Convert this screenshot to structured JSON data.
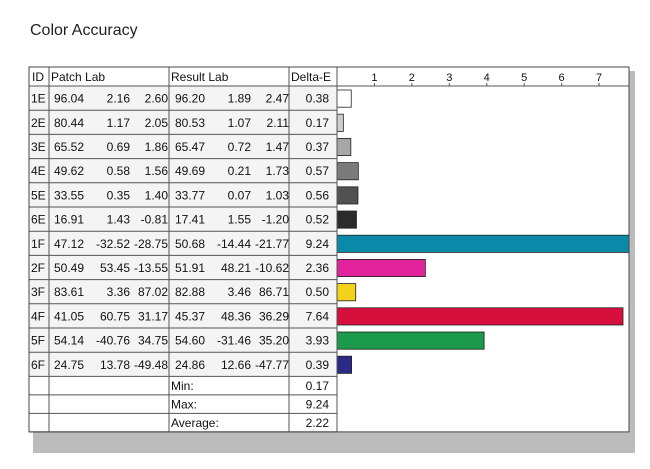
{
  "title": "Color Accuracy",
  "chart_data": {
    "type": "bar",
    "orientation": "horizontal",
    "title": "Color Accuracy",
    "columns": {
      "id": "ID",
      "patch": "Patch Lab",
      "result": "Result Lab",
      "delta": "Delta-E"
    },
    "x_ticks": [
      "1",
      "2",
      "3",
      "4",
      "5",
      "6",
      "7"
    ],
    "xlim": [
      0,
      7.8
    ],
    "rows": [
      {
        "id": "1E",
        "patch": [
          "96.04",
          "2.16",
          "2.60"
        ],
        "result": [
          "96.20",
          "1.89",
          "2.47"
        ],
        "delta": "0.38",
        "value": 0.38,
        "color": "#ffffff"
      },
      {
        "id": "2E",
        "patch": [
          "80.44",
          "1.17",
          "2.05"
        ],
        "result": [
          "80.53",
          "1.07",
          "2.11"
        ],
        "delta": "0.17",
        "value": 0.17,
        "color": "#cccccc"
      },
      {
        "id": "3E",
        "patch": [
          "65.52",
          "0.69",
          "1.86"
        ],
        "result": [
          "65.47",
          "0.72",
          "1.47"
        ],
        "delta": "0.37",
        "value": 0.37,
        "color": "#a6a6a6"
      },
      {
        "id": "4E",
        "patch": [
          "49.62",
          "0.58",
          "1.56"
        ],
        "result": [
          "49.69",
          "0.21",
          "1.73"
        ],
        "delta": "0.57",
        "value": 0.57,
        "color": "#7b7b7b"
      },
      {
        "id": "5E",
        "patch": [
          "33.55",
          "0.35",
          "1.40"
        ],
        "result": [
          "33.77",
          "0.07",
          "1.03"
        ],
        "delta": "0.56",
        "value": 0.56,
        "color": "#515151"
      },
      {
        "id": "6E",
        "patch": [
          "16.91",
          "1.43",
          "-0.81"
        ],
        "result": [
          "17.41",
          "1.55",
          "-1.20"
        ],
        "delta": "0.52",
        "value": 0.52,
        "color": "#2b2b2b"
      },
      {
        "id": "1F",
        "patch": [
          "47.12",
          "-32.52",
          "-28.75"
        ],
        "result": [
          "50.68",
          "-14.44",
          "-21.77"
        ],
        "delta": "9.24",
        "value": 9.24,
        "color": "#0a8aa8"
      },
      {
        "id": "2F",
        "patch": [
          "50.49",
          "53.45",
          "-13.55"
        ],
        "result": [
          "51.91",
          "48.21",
          "-10.62"
        ],
        "delta": "2.36",
        "value": 2.36,
        "color": "#e0239a"
      },
      {
        "id": "3F",
        "patch": [
          "83.61",
          "3.36",
          "87.02"
        ],
        "result": [
          "82.88",
          "3.46",
          "86.71"
        ],
        "delta": "0.50",
        "value": 0.5,
        "color": "#f3d21a"
      },
      {
        "id": "4F",
        "patch": [
          "41.05",
          "60.75",
          "31.17"
        ],
        "result": [
          "45.37",
          "48.36",
          "36.29"
        ],
        "delta": "7.64",
        "value": 7.64,
        "color": "#d60f3c"
      },
      {
        "id": "5F",
        "patch": [
          "54.14",
          "-40.76",
          "34.75"
        ],
        "result": [
          "54.60",
          "-31.46",
          "35.20"
        ],
        "delta": "3.93",
        "value": 3.93,
        "color": "#1a9a4a"
      },
      {
        "id": "6F",
        "patch": [
          "24.75",
          "13.78",
          "-49.48"
        ],
        "result": [
          "24.86",
          "12.66",
          "-47.77"
        ],
        "delta": "0.39",
        "value": 0.39,
        "color": "#2a2a88"
      }
    ],
    "summary": [
      {
        "label": "Min:",
        "value": "0.17"
      },
      {
        "label": "Max:",
        "value": "9.24"
      },
      {
        "label": "Average:",
        "value": "2.22"
      }
    ]
  }
}
